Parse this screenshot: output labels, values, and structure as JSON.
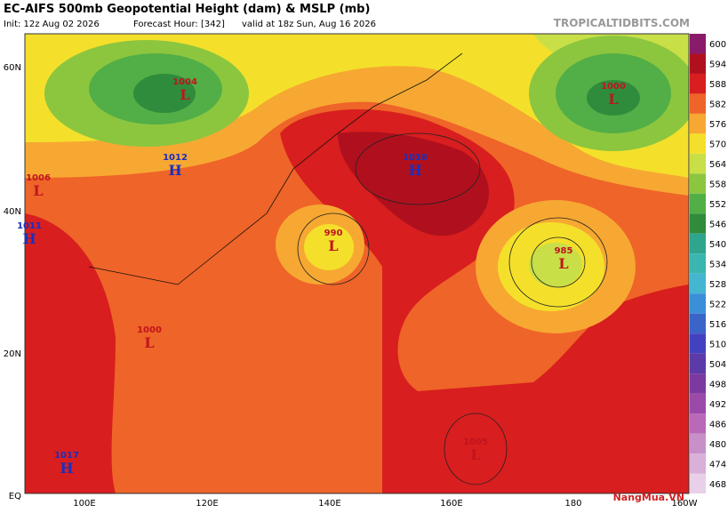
{
  "header": {
    "title": "EC-AIFS 500mb Geopotential Height (dam) & MSLP (mb)",
    "init": "Init: 12z Aug 02 2026",
    "forecast": "Forecast Hour: [342]",
    "valid": "valid at 18z Sun, Aug 16 2026",
    "brand": "TROPICALTIDBITS.COM"
  },
  "map": {
    "lat_labels": [
      "60N",
      "40N",
      "20N",
      "EQ"
    ],
    "lon_labels": [
      "100E",
      "120E",
      "140E",
      "160E",
      "180",
      "160W"
    ],
    "centers": [
      {
        "kind": "L",
        "pressure": "1004"
      },
      {
        "kind": "H",
        "pressure": "1012"
      },
      {
        "kind": "H",
        "pressure": "1018"
      },
      {
        "kind": "L",
        "pressure": "990"
      },
      {
        "kind": "L",
        "pressure": "1000"
      },
      {
        "kind": "L",
        "pressure": "985"
      },
      {
        "kind": "L",
        "pressure": "1000"
      },
      {
        "kind": "L",
        "pressure": "1005"
      },
      {
        "kind": "H",
        "pressure": "1017"
      },
      {
        "kind": "H",
        "pressure": "1011"
      },
      {
        "kind": "L",
        "pressure": "1006"
      }
    ],
    "watermark": "NangMua.VN"
  },
  "colorbar": [
    {
      "label": "600",
      "color": "#8a1a6a"
    },
    {
      "label": "594",
      "color": "#b0101e"
    },
    {
      "label": "588",
      "color": "#d81e1e"
    },
    {
      "label": "582",
      "color": "#ef6428"
    },
    {
      "label": "576",
      "color": "#f7a832"
    },
    {
      "label": "570",
      "color": "#f4e02a"
    },
    {
      "label": "564",
      "color": "#c8df48"
    },
    {
      "label": "558",
      "color": "#8cc63f"
    },
    {
      "label": "552",
      "color": "#52ae46"
    },
    {
      "label": "546",
      "color": "#2f8c3c"
    },
    {
      "label": "540",
      "color": "#2fa58e"
    },
    {
      "label": "534",
      "color": "#3bb5b0"
    },
    {
      "label": "528",
      "color": "#44b6d0"
    },
    {
      "label": "522",
      "color": "#3a8fd8"
    },
    {
      "label": "516",
      "color": "#3a64c8"
    },
    {
      "label": "510",
      "color": "#4242c0"
    },
    {
      "label": "504",
      "color": "#5c3aa8"
    },
    {
      "label": "498",
      "color": "#7a3aa0"
    },
    {
      "label": "492",
      "color": "#9a4aa8"
    },
    {
      "label": "486",
      "color": "#b86ab8"
    },
    {
      "label": "480",
      "color": "#c890c8"
    },
    {
      "label": "474",
      "color": "#d8b0d8"
    },
    {
      "label": "468",
      "color": "#e8d0e8"
    }
  ]
}
